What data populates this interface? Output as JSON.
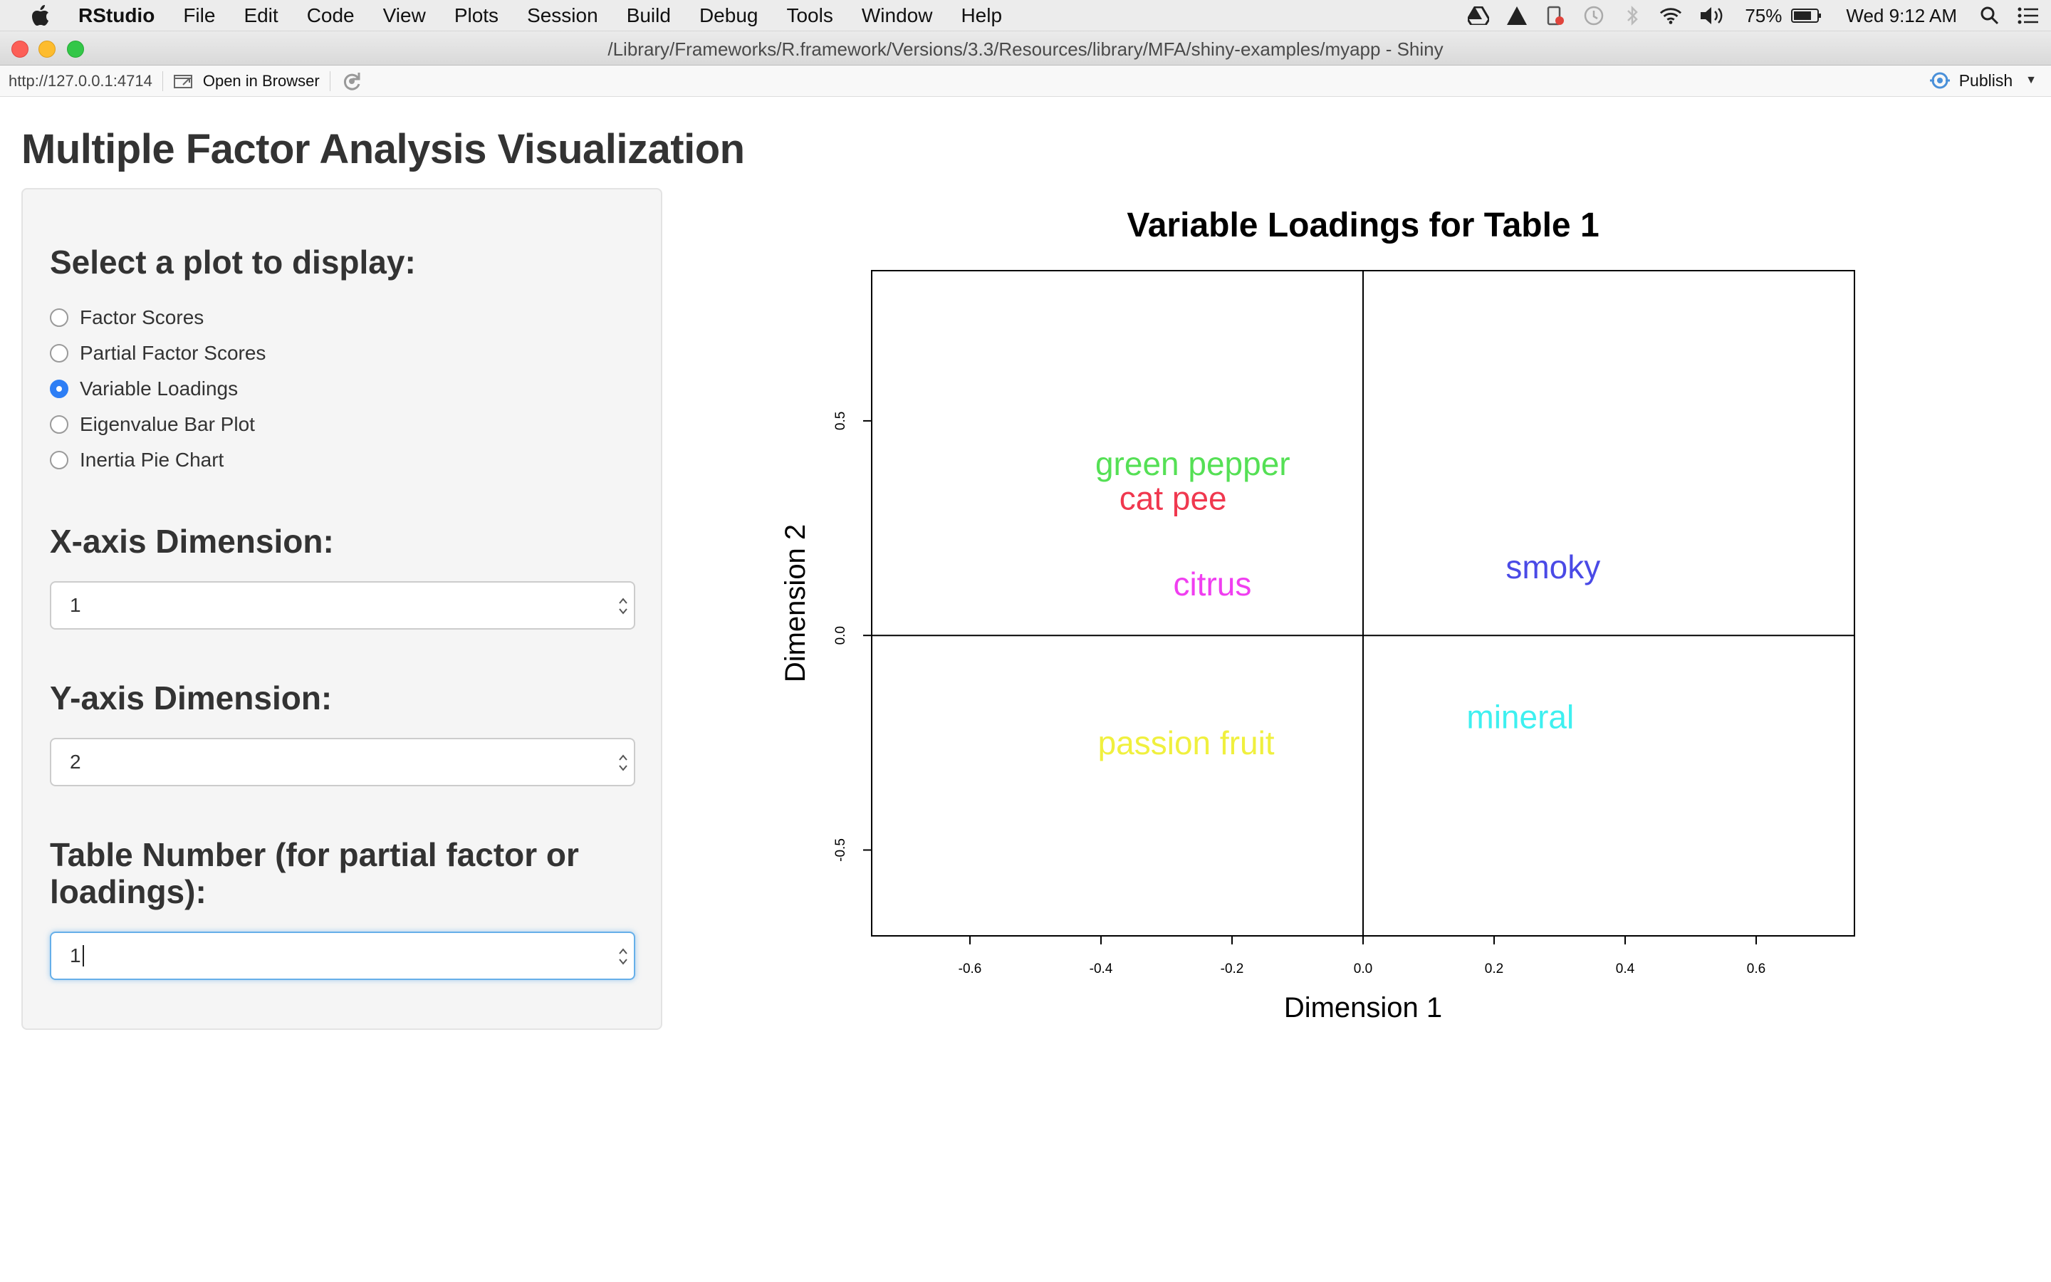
{
  "menubar": {
    "app_name": "RStudio",
    "items": [
      "File",
      "Edit",
      "Code",
      "View",
      "Plots",
      "Session",
      "Build",
      "Debug",
      "Tools",
      "Window",
      "Help"
    ],
    "battery": "75%",
    "clock": "Wed 9:12 AM"
  },
  "window": {
    "title": "/Library/Frameworks/R.framework/Versions/3.3/Resources/library/MFA/shiny-examples/myapp - Shiny"
  },
  "toolbar": {
    "url": "http://127.0.0.1:4714",
    "open_browser_label": "Open in Browser",
    "publish_label": "Publish"
  },
  "app": {
    "title": "Multiple Factor Analysis Visualization",
    "plot_select": {
      "label": "Select a plot to display:",
      "options": [
        "Factor Scores",
        "Partial Factor Scores",
        "Variable Loadings",
        "Eigenvalue Bar Plot",
        "Inertia Pie Chart"
      ],
      "selected": "Variable Loadings"
    },
    "x_dim": {
      "label": "X-axis Dimension:",
      "value": "1"
    },
    "y_dim": {
      "label": "Y-axis Dimension:",
      "value": "2"
    },
    "table_num": {
      "label": "Table Number (for partial factor or loadings):",
      "value": "1"
    }
  },
  "chart_data": {
    "type": "scatter",
    "title": "Variable Loadings for Table 1",
    "xlabel": "Dimension 1",
    "ylabel": "Dimension 2",
    "xlim": [
      -0.75,
      0.75
    ],
    "ylim": [
      -0.7,
      0.85
    ],
    "xticks": [
      "-0.6",
      "-0.4",
      "-0.2",
      "0.0",
      "0.2",
      "0.4",
      "0.6"
    ],
    "yticks": [
      "-0.5",
      "0.0",
      "0.5"
    ],
    "reference_lines": [
      0,
      0
    ],
    "points": [
      {
        "label": "green pepper",
        "x": -0.26,
        "y": 0.4,
        "color": "#55e055"
      },
      {
        "label": "cat pee",
        "x": -0.29,
        "y": 0.32,
        "color": "#f0384f"
      },
      {
        "label": "citrus",
        "x": -0.23,
        "y": 0.12,
        "color": "#f03ef0"
      },
      {
        "label": "smoky",
        "x": 0.29,
        "y": 0.16,
        "color": "#4a4ae6"
      },
      {
        "label": "mineral",
        "x": 0.24,
        "y": -0.19,
        "color": "#3ef0f0"
      },
      {
        "label": "passion fruit",
        "x": -0.27,
        "y": -0.25,
        "color": "#f0f03e"
      }
    ]
  }
}
